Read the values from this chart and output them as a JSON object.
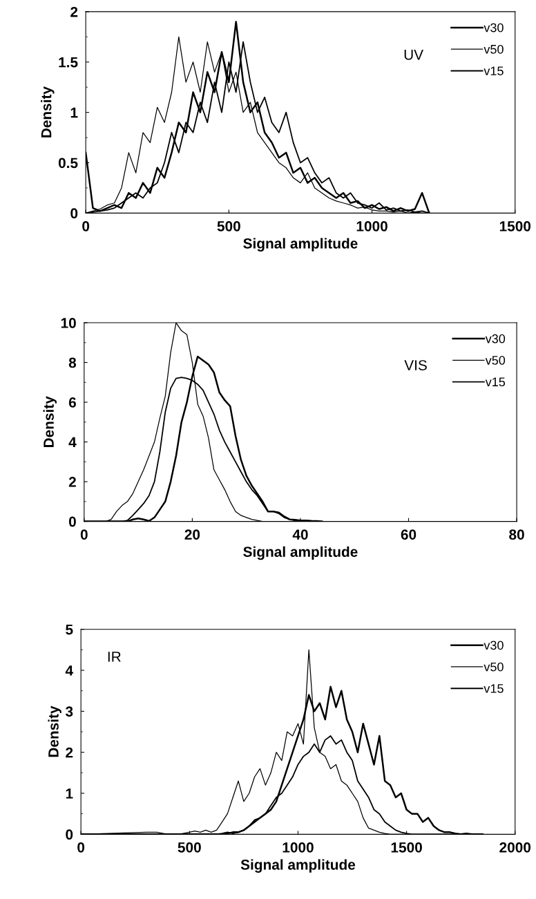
{
  "chart_data": [
    {
      "type": "line",
      "xlabel": "Signal amplitude",
      "ylabel": "Density",
      "annotations": [
        "UV"
      ],
      "xlim": [
        0,
        1500
      ],
      "xticks": [
        0,
        500,
        1000,
        1500
      ],
      "ylim": [
        0,
        2
      ],
      "yticks": [
        0,
        0.5,
        1,
        1.5,
        2
      ],
      "legend": "top right",
      "grid": false,
      "x": [
        0,
        25,
        50,
        75,
        100,
        125,
        150,
        175,
        200,
        225,
        250,
        275,
        300,
        325,
        350,
        375,
        400,
        425,
        450,
        475,
        500,
        525,
        550,
        575,
        600,
        625,
        650,
        675,
        700,
        725,
        750,
        775,
        800,
        825,
        850,
        875,
        900,
        925,
        950,
        975,
        1000,
        1025,
        1050,
        1075,
        1100,
        1125,
        1150,
        1175,
        1200
      ],
      "series": [
        {
          "name": "v30",
          "color": "#000000",
          "values": [
            0.6,
            0.05,
            0.02,
            0.05,
            0.08,
            0.05,
            0.2,
            0.15,
            0.3,
            0.2,
            0.45,
            0.35,
            0.6,
            0.9,
            0.8,
            1.2,
            1.0,
            1.4,
            1.2,
            1.6,
            1.3,
            1.9,
            1.3,
            1.0,
            1.1,
            0.8,
            0.7,
            0.55,
            0.6,
            0.4,
            0.45,
            0.3,
            0.35,
            0.25,
            0.2,
            0.15,
            0.2,
            0.1,
            0.12,
            0.05,
            0.08,
            0.04,
            0.06,
            0.02,
            0.05,
            0.02,
            0.04,
            0.2,
            0
          ]
        },
        {
          "name": "v50",
          "color": "#000000",
          "values": [
            0,
            0.02,
            0.04,
            0.08,
            0.1,
            0.25,
            0.6,
            0.4,
            0.8,
            0.7,
            1.05,
            0.9,
            1.2,
            1.75,
            1.3,
            1.5,
            1.2,
            1.7,
            1.4,
            1.6,
            1.2,
            1.4,
            1.0,
            1.1,
            0.8,
            0.7,
            0.6,
            0.5,
            0.45,
            0.35,
            0.3,
            0.4,
            0.25,
            0.2,
            0.15,
            0.12,
            0.1,
            0.08,
            0.05,
            0.06,
            0.03,
            0.02,
            0.02,
            0.01,
            0.02,
            0,
            0.01,
            0,
            0
          ]
        },
        {
          "name": "v15",
          "color": "#000000",
          "values": [
            0,
            0.01,
            0.02,
            0.03,
            0.05,
            0.1,
            0.15,
            0.2,
            0.15,
            0.25,
            0.3,
            0.5,
            0.8,
            0.6,
            0.9,
            0.8,
            1.1,
            0.9,
            1.3,
            1.0,
            1.5,
            1.2,
            1.7,
            1.3,
            1.0,
            1.15,
            0.9,
            0.8,
            1.0,
            0.7,
            0.5,
            0.55,
            0.4,
            0.3,
            0.35,
            0.2,
            0.15,
            0.2,
            0.1,
            0.08,
            0.05,
            0.1,
            0.03,
            0.05,
            0.02,
            0.03,
            0.01,
            0.02,
            0
          ]
        }
      ]
    },
    {
      "type": "line",
      "xlabel": "Signal amplitude",
      "ylabel": "Density",
      "annotations": [
        "VIS"
      ],
      "xlim": [
        0,
        80
      ],
      "xticks": [
        0,
        20,
        40,
        60,
        80
      ],
      "ylim": [
        0,
        10
      ],
      "yticks": [
        0,
        2,
        4,
        6,
        8,
        10
      ],
      "legend": "top right",
      "grid": false,
      "x": [
        0,
        1,
        2,
        3,
        4,
        5,
        6,
        7,
        8,
        9,
        10,
        11,
        12,
        13,
        14,
        15,
        16,
        17,
        18,
        19,
        20,
        21,
        22,
        23,
        24,
        25,
        26,
        27,
        28,
        29,
        30,
        31,
        32,
        33,
        34,
        35,
        36,
        37,
        38,
        39,
        40,
        41,
        42,
        43,
        44
      ],
      "series": [
        {
          "name": "v30",
          "color": "#000000",
          "values": [
            0,
            0,
            0,
            0,
            0,
            0,
            0,
            0,
            0,
            0.1,
            0.15,
            0.1,
            0.02,
            0.2,
            0.6,
            1.0,
            2.0,
            3.3,
            5.0,
            6.0,
            7.3,
            8.3,
            8.1,
            7.9,
            7.5,
            6.5,
            6.1,
            5.8,
            4.3,
            3.1,
            2.3,
            1.8,
            1.4,
            1.0,
            0.5,
            0.5,
            0.45,
            0.25,
            0.1,
            0.08,
            0.05,
            0.05,
            0.03,
            0.02,
            0
          ]
        },
        {
          "name": "v50",
          "color": "#000000",
          "values": [
            0,
            0,
            0,
            0,
            0,
            0.1,
            0.5,
            0.8,
            1.0,
            1.4,
            2.0,
            2.6,
            3.3,
            4.0,
            5.2,
            6.3,
            8.5,
            10.0,
            9.6,
            9.4,
            8.0,
            5.9,
            5.3,
            4.2,
            2.6,
            2.1,
            1.6,
            1.0,
            0.5,
            0.3,
            0.2,
            0.1,
            0.05,
            0,
            0,
            0,
            0,
            0,
            0,
            0,
            0,
            0,
            0,
            0,
            0
          ]
        },
        {
          "name": "v15",
          "color": "#000000",
          "values": [
            0,
            0,
            0,
            0,
            0,
            0,
            0,
            0,
            0.05,
            0.3,
            0.6,
            0.9,
            1.3,
            2.0,
            3.5,
            5.5,
            6.7,
            7.2,
            7.25,
            7.2,
            7.1,
            6.9,
            6.6,
            6.0,
            5.4,
            4.6,
            4.0,
            3.5,
            3.0,
            2.5,
            2.0,
            1.6,
            1.3,
            0.9,
            0.5,
            0.5,
            0.4,
            0.2,
            0.1,
            0.05,
            0,
            0,
            0,
            0,
            0
          ]
        }
      ]
    },
    {
      "type": "line",
      "xlabel": "Signal amplitude",
      "ylabel": "Density",
      "annotations": [
        "IR"
      ],
      "xlim": [
        0,
        2000
      ],
      "xticks": [
        0,
        500,
        1000,
        1500,
        2000
      ],
      "ylim": [
        0,
        5
      ],
      "yticks": [
        0,
        1,
        2,
        3,
        4,
        5
      ],
      "legend": "top right",
      "grid": false,
      "x": [
        0,
        300,
        350,
        400,
        450,
        500,
        525,
        550,
        575,
        600,
        625,
        650,
        675,
        700,
        725,
        750,
        775,
        800,
        825,
        850,
        875,
        900,
        925,
        950,
        975,
        1000,
        1025,
        1050,
        1075,
        1100,
        1125,
        1150,
        1175,
        1200,
        1225,
        1250,
        1275,
        1300,
        1325,
        1350,
        1375,
        1400,
        1425,
        1450,
        1475,
        1500,
        1525,
        1550,
        1575,
        1600,
        1625,
        1650,
        1675,
        1700,
        1725,
        1750,
        1775,
        1800,
        1850
      ],
      "series": [
        {
          "name": "v30",
          "color": "#000000",
          "values": [
            0,
            0,
            0,
            0,
            0,
            0,
            0,
            0,
            0,
            0,
            0,
            0,
            0.02,
            0.05,
            0.05,
            0.1,
            0.2,
            0.3,
            0.4,
            0.5,
            0.6,
            0.8,
            1.2,
            1.6,
            2.0,
            2.4,
            2.8,
            3.4,
            3.0,
            3.2,
            2.8,
            3.6,
            3.1,
            3.5,
            2.8,
            2.5,
            2.0,
            2.7,
            2.2,
            1.7,
            2.4,
            1.3,
            1.2,
            0.9,
            1.0,
            0.6,
            0.5,
            0.5,
            0.3,
            0.4,
            0.2,
            0.1,
            0.05,
            0.05,
            0.02,
            0,
            0.02,
            0,
            0
          ]
        },
        {
          "name": "v50",
          "color": "#000000",
          "values": [
            0,
            0.05,
            0.05,
            0,
            0,
            0.05,
            0.08,
            0.05,
            0.1,
            0.05,
            0.1,
            0.3,
            0.5,
            0.9,
            1.3,
            0.8,
            1.0,
            1.4,
            1.6,
            1.2,
            1.5,
            2.0,
            1.8,
            2.5,
            2.4,
            2.7,
            2.2,
            4.5,
            2.6,
            2.0,
            1.9,
            1.6,
            1.7,
            1.3,
            1.2,
            1.0,
            0.8,
            0.4,
            0.15,
            0.1,
            0.05,
            0.02,
            0,
            0,
            0,
            0,
            0,
            0,
            0,
            0,
            0,
            0,
            0,
            0,
            0,
            0,
            0,
            0,
            0
          ]
        },
        {
          "name": "v15",
          "color": "#000000",
          "values": [
            0,
            0,
            0,
            0,
            0,
            0,
            0,
            0,
            0,
            0,
            0,
            0.02,
            0.05,
            0.02,
            0.05,
            0.1,
            0.2,
            0.35,
            0.4,
            0.5,
            0.7,
            0.9,
            1.0,
            1.2,
            1.4,
            1.7,
            1.9,
            2.0,
            2.2,
            2.0,
            2.3,
            2.4,
            2.2,
            2.3,
            2.0,
            1.8,
            1.3,
            1.1,
            0.9,
            0.6,
            0.5,
            0.3,
            0.2,
            0.1,
            0.05,
            0.02,
            0,
            0,
            0,
            0,
            0,
            0,
            0,
            0,
            0,
            0,
            0,
            0,
            0
          ]
        }
      ]
    }
  ]
}
